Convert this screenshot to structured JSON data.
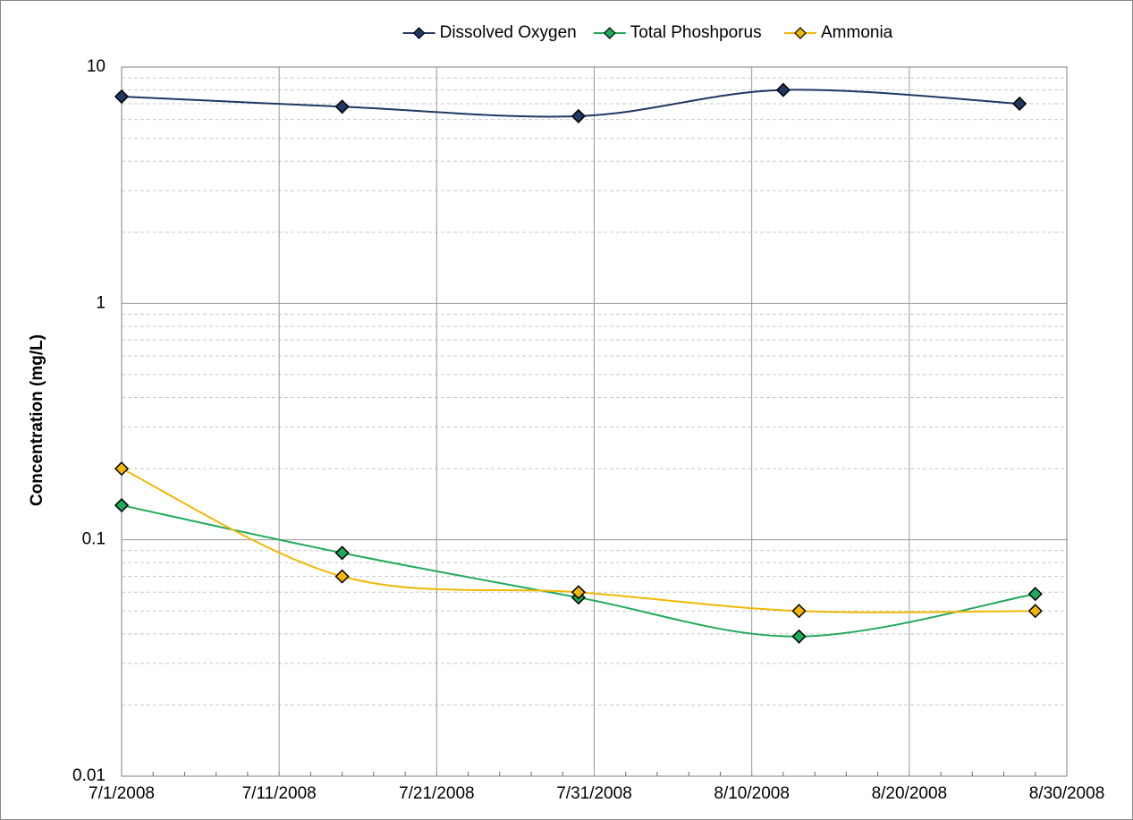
{
  "chart_data": {
    "type": "line",
    "y_label": "Concentration (mg/L)",
    "ylog": true,
    "smooth": true,
    "grid": true,
    "ylim": [
      0.01,
      10
    ],
    "yticks": [
      0.01,
      0.1,
      1,
      10
    ],
    "xlim": [
      "7/1/2008",
      "8/30/2008"
    ],
    "xticks": [
      "7/1/2008",
      "7/11/2008",
      "7/21/2008",
      "7/31/2008",
      "8/10/2008",
      "8/20/2008",
      "8/30/2008"
    ],
    "legend": "top",
    "series": [
      {
        "name": "Dissolved Oxygen",
        "color": "#1f3864",
        "x": [
          "7/1/2008",
          "7/15/2008",
          "7/30/2008",
          "8/12/2008",
          "8/27/2008"
        ],
        "values": [
          7.5,
          6.8,
          6.2,
          8.0,
          7.0
        ]
      },
      {
        "name": "Total Phoshporus",
        "color": "#1faa59",
        "x": [
          "7/1/2008",
          "7/15/2008",
          "7/30/2008",
          "8/13/2008",
          "8/28/2008"
        ],
        "values": [
          0.14,
          0.088,
          0.057,
          0.039,
          0.059
        ]
      },
      {
        "name": "Ammonia",
        "color": "#f2b705",
        "x": [
          "7/1/2008",
          "7/15/2008",
          "7/30/2008",
          "8/13/2008",
          "8/28/2008"
        ],
        "values": [
          0.2,
          0.07,
          0.06,
          0.05,
          0.05
        ]
      }
    ]
  }
}
